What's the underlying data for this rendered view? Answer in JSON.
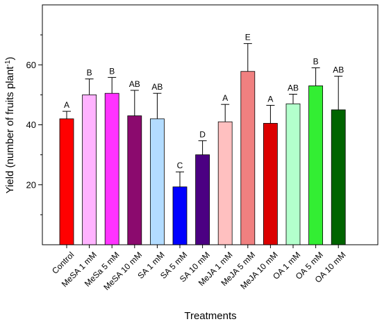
{
  "chart_data": {
    "type": "bar",
    "xlabel": "Treatments",
    "ylabel": "Yield (number of fruits plant",
    "ylabel_superscript": "-1",
    "ylabel_suffix": ")",
    "ylim": [
      0,
      80
    ],
    "yticks": [
      20,
      40,
      60
    ],
    "grid": false,
    "categories": [
      "Control",
      "MeSA 1 mM",
      "MeSa 5 mM",
      "MeSA 10 mM",
      "SA 1 mM",
      "SA 5 mM",
      "SA 10 mM",
      "MeJA 1 mM",
      "MeJA 5 mM",
      "MeJA 10 mM",
      "OA 1 mM",
      "OA 5 mM",
      "OA 10 mM"
    ],
    "values": [
      42,
      50,
      50.5,
      43,
      42,
      19.3,
      30,
      41,
      57.8,
      40.5,
      47,
      53,
      45
    ],
    "errors": [
      2.5,
      5.3,
      5.3,
      8.5,
      8.5,
      5,
      4.7,
      5.8,
      9.3,
      6,
      3.2,
      6,
      11.2
    ],
    "significance": [
      "A",
      "B",
      "B",
      "AB",
      "AB",
      "C",
      "D",
      "A",
      "E",
      "A",
      "AB",
      "B",
      "AB"
    ],
    "colors": [
      "#ff0000",
      "#ffb3ff",
      "#ff33ff",
      "#8b0a6e",
      "#b3dcff",
      "#0000ff",
      "#4b0082",
      "#ffc0c0",
      "#f08080",
      "#dc0000",
      "#b3ffcc",
      "#33ee33",
      "#006400"
    ]
  }
}
